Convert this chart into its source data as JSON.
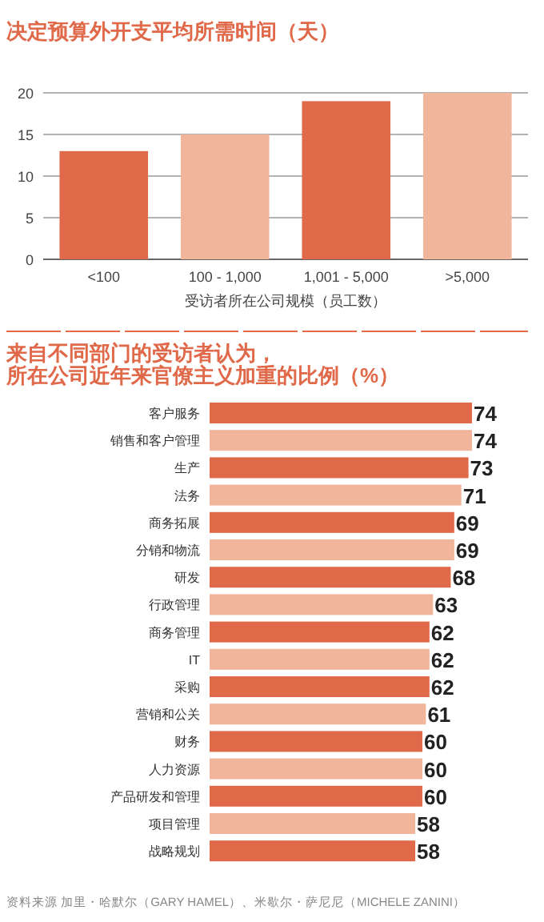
{
  "chart_data": [
    {
      "type": "bar",
      "title": "决定预算外开支平均所需时间（天）",
      "xlabel": "受访者所在公司规模（员工数）",
      "categories": [
        "<100",
        "100 - 1,000",
        "1,001 - 5,000",
        ">5,000"
      ],
      "values": [
        13,
        15,
        19,
        20
      ],
      "colors": [
        "#e0694a",
        "#f0b59b",
        "#e0694a",
        "#f0b59b"
      ],
      "ylim": [
        0,
        20
      ],
      "yticks": [
        0,
        5,
        10,
        15,
        20
      ],
      "grid": "y"
    },
    {
      "type": "bar",
      "orientation": "horizontal",
      "title": "来自不同部门的受访者认为，",
      "subtitle": "所在公司近年来官僚主义加重的比例（%）",
      "categories": [
        "客户服务",
        "销售和客户管理",
        "生产",
        "法务",
        "商务拓展",
        "分销和物流",
        "研发",
        "行政管理",
        "商务管理",
        "IT",
        "采购",
        "营销和公关",
        "财务",
        "人力资源",
        "产品研发和管理",
        "项目管理",
        "战略规划"
      ],
      "values": [
        74,
        74,
        73,
        71,
        69,
        69,
        68,
        63,
        62,
        62,
        62,
        61,
        60,
        60,
        60,
        58,
        58
      ],
      "colors": [
        "#e0694a",
        "#f0b59b",
        "#e0694a",
        "#f0b59b",
        "#e0694a",
        "#f0b59b",
        "#e0694a",
        "#f0b59b",
        "#e0694a",
        "#f0b59b",
        "#e0694a",
        "#f0b59b",
        "#e0694a",
        "#f0b59b",
        "#e0694a",
        "#f0b59b",
        "#e0694a"
      ],
      "data_labels": true,
      "annotations": [
        "资料来源  加里・哈默尔（GARY HAMEL）、米歇尔・萨尼尼（MICHELE ZANINI）"
      ]
    }
  ]
}
